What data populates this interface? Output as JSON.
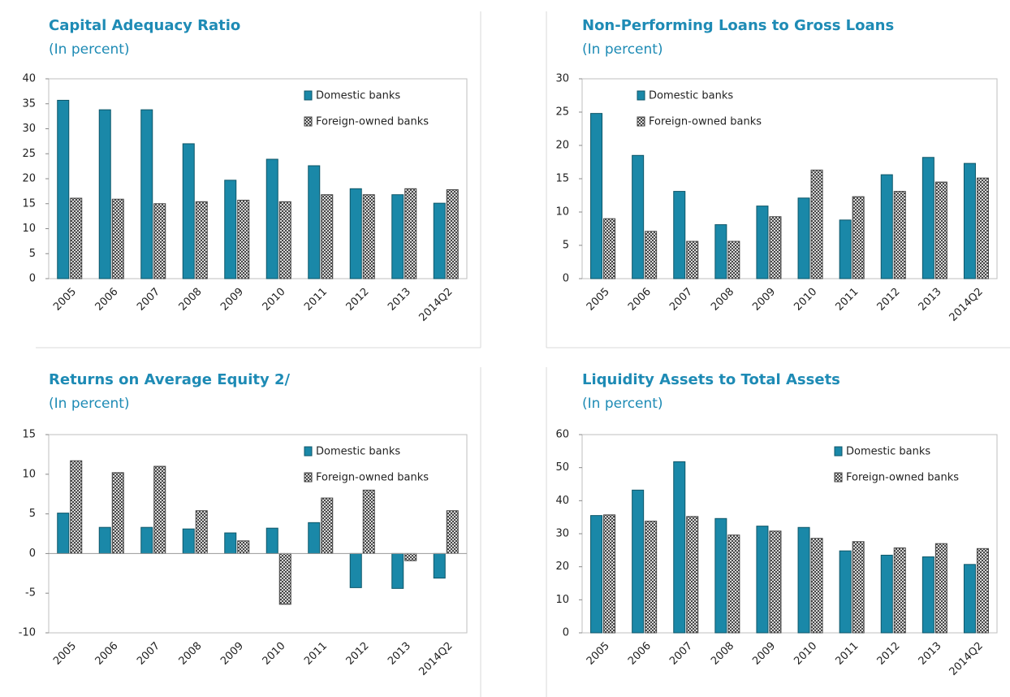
{
  "chart_data": [
    {
      "type": "bar",
      "title": "Capital Adequacy Ratio",
      "subtitle": "(In percent)",
      "categories": [
        "2005",
        "2006",
        "2007",
        "2008",
        "2009",
        "2010",
        "2011",
        "2012",
        "2013",
        "2014Q2"
      ],
      "series": [
        {
          "name": "Domestic banks",
          "color": "#1a88a8",
          "values": [
            35.7,
            33.8,
            33.8,
            27.0,
            19.7,
            23.9,
            22.6,
            18.0,
            16.8,
            15.1
          ]
        },
        {
          "name": "Foreign-owned banks",
          "color": "#ffffff",
          "hatch": true,
          "values": [
            16.1,
            15.9,
            15.0,
            15.4,
            15.7,
            15.4,
            16.8,
            16.8,
            18.0,
            17.8
          ]
        }
      ],
      "ylim": [
        0,
        40
      ],
      "yticks": [
        0,
        5,
        10,
        15,
        20,
        25,
        30,
        35,
        40
      ],
      "legend": "upper right"
    },
    {
      "type": "bar",
      "title": "Non-Performing Loans to Gross Loans",
      "subtitle": "(In percent)",
      "categories": [
        "2005",
        "2006",
        "2007",
        "2008",
        "2009",
        "2010",
        "2011",
        "2012",
        "2013",
        "2014Q2"
      ],
      "series": [
        {
          "name": "Domestic banks",
          "color": "#1a88a8",
          "values": [
            24.8,
            18.5,
            13.1,
            8.1,
            10.9,
            12.1,
            8.8,
            15.6,
            18.2,
            17.3
          ]
        },
        {
          "name": "Foreign-owned banks",
          "color": "#ffffff",
          "hatch": true,
          "values": [
            9.0,
            7.1,
            5.6,
            5.6,
            9.3,
            16.3,
            12.3,
            13.1,
            14.5,
            15.1
          ]
        }
      ],
      "ylim": [
        0,
        30
      ],
      "yticks": [
        0,
        5,
        10,
        15,
        20,
        25,
        30
      ],
      "legend": "upper left"
    },
    {
      "type": "bar",
      "title": "Returns on Average Equity 2/",
      "subtitle": "(In percent)",
      "categories": [
        "2005",
        "2006",
        "2007",
        "2008",
        "2009",
        "2010",
        "2011",
        "2012",
        "2013",
        "2014Q2"
      ],
      "series": [
        {
          "name": "Domestic banks",
          "color": "#1a88a8",
          "values": [
            5.1,
            3.3,
            3.3,
            3.1,
            2.6,
            3.2,
            3.9,
            -4.3,
            -4.4,
            -3.1
          ]
        },
        {
          "name": "Foreign-owned banks",
          "color": "#ffffff",
          "hatch": true,
          "values": [
            11.7,
            10.2,
            11.0,
            5.4,
            1.6,
            -6.4,
            7.0,
            8.0,
            -0.9,
            5.4
          ]
        }
      ],
      "ylim": [
        -10,
        15
      ],
      "yticks": [
        -10,
        -5,
        0,
        5,
        10,
        15
      ],
      "legend": "upper right"
    },
    {
      "type": "bar",
      "title": "Liquidity Assets to Total Assets",
      "subtitle": "(In percent)",
      "categories": [
        "2005",
        "2006",
        "2007",
        "2008",
        "2009",
        "2010",
        "2011",
        "2012",
        "2013",
        "2014Q2"
      ],
      "series": [
        {
          "name": "Domestic banks",
          "color": "#1a88a8",
          "values": [
            35.5,
            43.2,
            51.8,
            34.6,
            32.3,
            31.9,
            24.8,
            23.5,
            23.0,
            20.7
          ]
        },
        {
          "name": "Foreign-owned banks",
          "color": "#ffffff",
          "hatch": true,
          "values": [
            35.7,
            33.8,
            35.2,
            29.6,
            30.8,
            28.6,
            27.6,
            25.7,
            27.0,
            25.5
          ]
        }
      ],
      "ylim": [
        0,
        60
      ],
      "yticks": [
        0,
        10,
        20,
        30,
        40,
        50,
        60
      ],
      "legend": "upper right"
    }
  ]
}
